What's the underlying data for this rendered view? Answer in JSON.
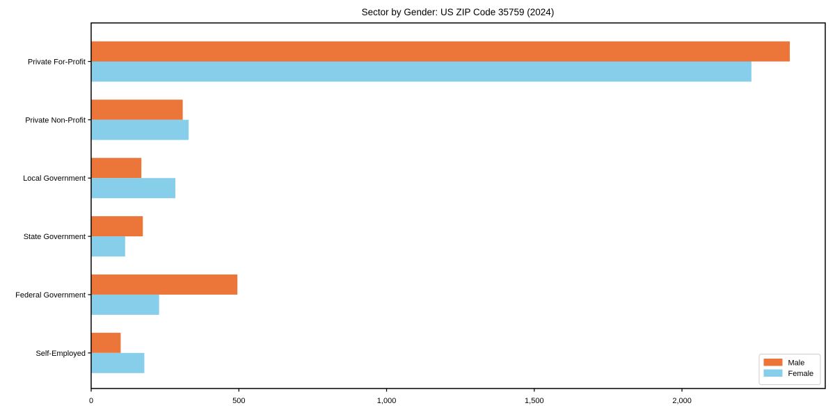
{
  "chart_data": {
    "type": "bar",
    "orientation": "horizontal",
    "title": "Sector by Gender: US ZIP Code 35759 (2024)",
    "categories": [
      "Private For-Profit",
      "Private Non-Profit",
      "Local Government",
      "State Government",
      "Federal Government",
      "Self-Employed"
    ],
    "series": [
      {
        "name": "Male",
        "color": "#ec7639",
        "values": [
          2365,
          310,
          170,
          175,
          495,
          100
        ]
      },
      {
        "name": "Female",
        "color": "#87ceeb",
        "values": [
          2235,
          330,
          285,
          115,
          230,
          180
        ]
      }
    ],
    "xlabel": "",
    "ylabel": "",
    "xlim": [
      0,
      2485
    ],
    "xticks": [
      0,
      500,
      1000,
      1500,
      2000
    ],
    "xtick_labels": [
      "0",
      "500",
      "1,000",
      "1,500",
      "2,000"
    ],
    "grid": false,
    "legend": {
      "position": "lower right",
      "entries": [
        "Male",
        "Female"
      ]
    },
    "colors": {
      "axis": "#000000",
      "legend_border": "#cccccc",
      "background": "#ffffff"
    }
  }
}
